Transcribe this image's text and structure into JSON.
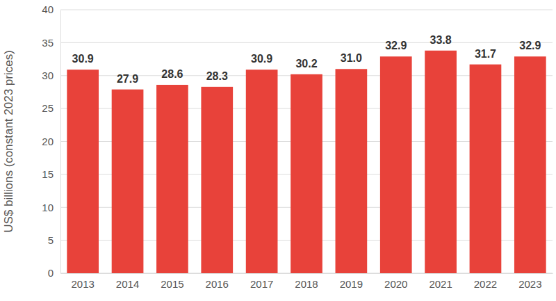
{
  "chart_data": {
    "type": "bar",
    "ylabel": "US$ billions (constant 2023 prices)",
    "categories": [
      "2013",
      "2014",
      "2015",
      "2016",
      "2017",
      "2018",
      "2019",
      "2020",
      "2021",
      "2022",
      "2023"
    ],
    "values": [
      30.9,
      27.9,
      28.6,
      28.3,
      30.9,
      30.2,
      31.0,
      32.9,
      33.8,
      31.7,
      32.9
    ],
    "value_labels": [
      "30.9",
      "27.9",
      "28.6",
      "28.3",
      "30.9",
      "30.2",
      "31.0",
      "32.9",
      "33.8",
      "31.7",
      "32.9"
    ],
    "color": "#e8423a",
    "ylim": [
      0,
      40
    ],
    "yticks": [
      0,
      5,
      10,
      15,
      20,
      25,
      30,
      35,
      40
    ],
    "grid": true,
    "data_labels": true
  }
}
